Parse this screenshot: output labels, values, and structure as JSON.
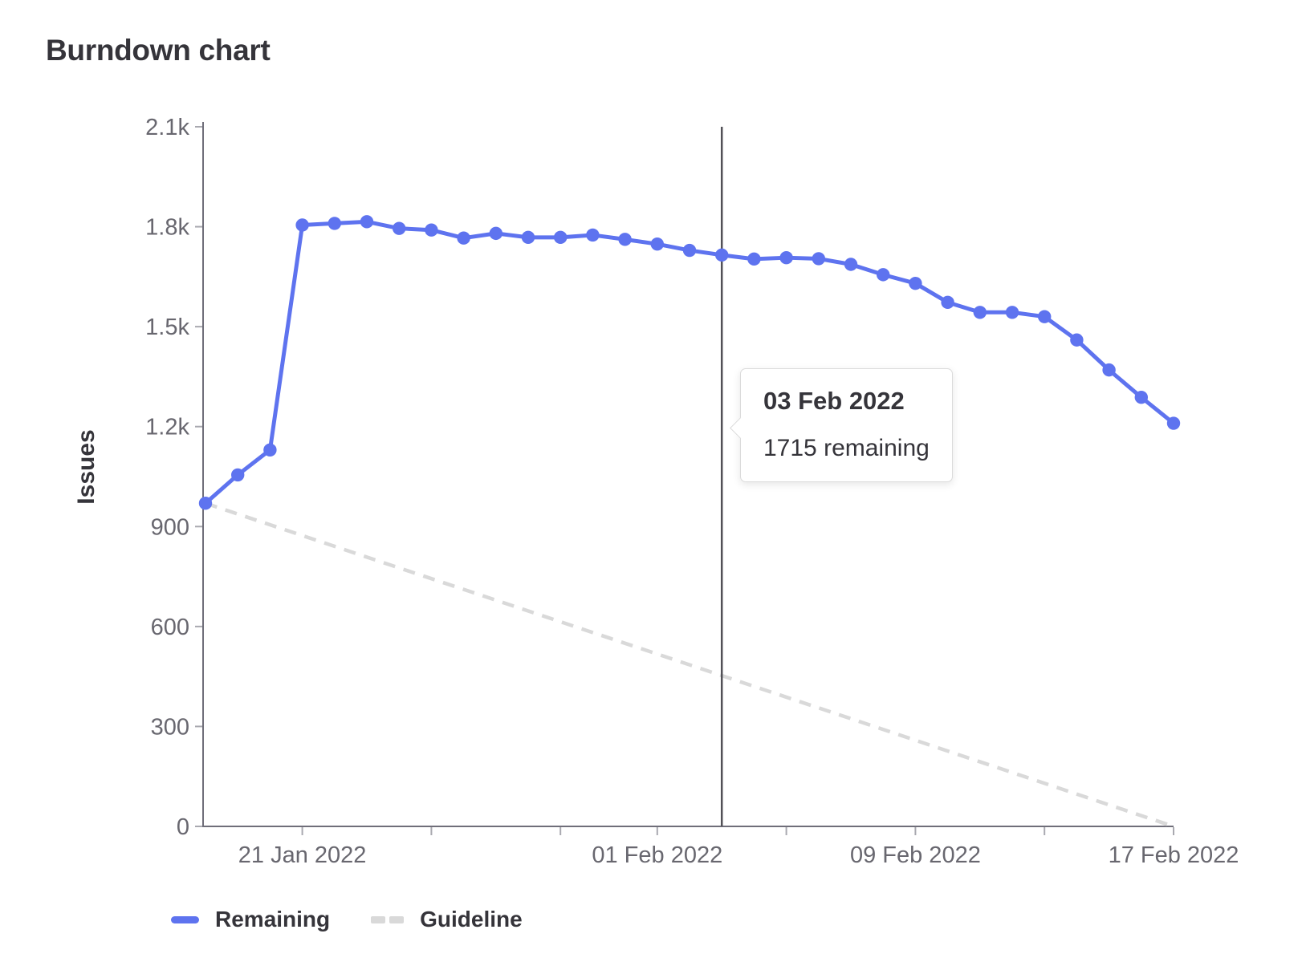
{
  "chart_data": {
    "type": "line",
    "title": "Burndown chart",
    "ylabel": "Issues",
    "xlabel": "",
    "grid": false,
    "legend_position": "bottom-left",
    "y_max": 2100,
    "y_ticks": [
      {
        "value": 0,
        "label": "0"
      },
      {
        "value": 300,
        "label": "300"
      },
      {
        "value": 600,
        "label": "600"
      },
      {
        "value": 900,
        "label": "900"
      },
      {
        "value": 1200,
        "label": "1.2k"
      },
      {
        "value": 1500,
        "label": "1.5k"
      },
      {
        "value": 1800,
        "label": "1.8k"
      },
      {
        "value": 2100,
        "label": "2.1k"
      }
    ],
    "x": [
      "18 Jan 2022",
      "19 Jan 2022",
      "20 Jan 2022",
      "21 Jan 2022",
      "22 Jan 2022",
      "23 Jan 2022",
      "24 Jan 2022",
      "25 Jan 2022",
      "26 Jan 2022",
      "27 Jan 2022",
      "28 Jan 2022",
      "29 Jan 2022",
      "30 Jan 2022",
      "31 Jan 2022",
      "01 Feb 2022",
      "02 Feb 2022",
      "03 Feb 2022",
      "04 Feb 2022",
      "05 Feb 2022",
      "06 Feb 2022",
      "07 Feb 2022",
      "08 Feb 2022",
      "09 Feb 2022",
      "10 Feb 2022",
      "11 Feb 2022",
      "12 Feb 2022",
      "13 Feb 2022",
      "14 Feb 2022",
      "15 Feb 2022",
      "16 Feb 2022",
      "17 Feb 2022"
    ],
    "series": [
      {
        "name": "Remaining",
        "type": "line",
        "values": [
          970,
          1055,
          1130,
          1805,
          1810,
          1815,
          1795,
          1790,
          1766,
          1780,
          1768,
          1768,
          1775,
          1762,
          1748,
          1729,
          1715,
          1703,
          1707,
          1704,
          1687,
          1656,
          1630,
          1573,
          1543,
          1543,
          1530,
          1460,
          1370,
          1288,
          1210
        ]
      },
      {
        "name": "Guideline",
        "type": "dashed-line",
        "start_value": 970,
        "end_value": 0
      }
    ],
    "x_tick_day_indices": [
      3,
      7,
      11,
      14,
      18,
      22,
      26,
      30
    ],
    "x_labels": [
      {
        "day_index": 3,
        "label": "21 Jan 2022"
      },
      {
        "day_index": 14,
        "label": "01 Feb 2022"
      },
      {
        "day_index": 22,
        "label": "09 Feb 2022"
      },
      {
        "day_index": 30,
        "label": "17 Feb 2022"
      }
    ],
    "today": {
      "day_index": 16,
      "date": "03 Feb 2022"
    }
  },
  "tooltip": {
    "title": "03 Feb 2022",
    "text": "1715 remaining"
  },
  "colors": {
    "remaining": "#5e73ef",
    "guideline": "#d9d9d9",
    "axis": "#6f6e79",
    "tick_mark": "#a9a9b0",
    "tick_text": "#68676f",
    "today_line": "#525157",
    "text": "#35343a"
  }
}
